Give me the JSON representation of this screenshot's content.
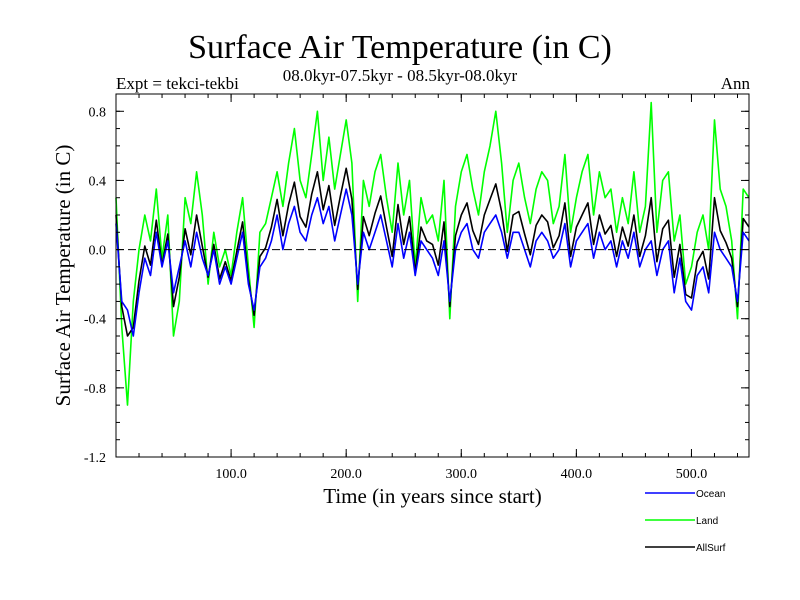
{
  "chart_data": {
    "type": "line",
    "title": "Surface Air Temperature (in C)",
    "subtitle": "08.0kyr-07.5kyr - 08.5kyr-08.0kyr",
    "experiment": "Expt = tekci-tekbi",
    "period": "Ann",
    "xlabel": "Time (in years since start)",
    "ylabel": "Surface Air Temperature (in C)",
    "xlim": [
      0,
      550
    ],
    "ylim": [
      -1.2,
      0.9
    ],
    "xticks": [
      100,
      200,
      300,
      400,
      500
    ],
    "xtick_labels": [
      "100.0",
      "200.0",
      "300.0",
      "400.0",
      "500.0"
    ],
    "yticks": [
      -1.2,
      -0.8,
      -0.4,
      0.0,
      0.4,
      0.8
    ],
    "ytick_labels": [
      "-1.2",
      "-0.8",
      "-0.4",
      "0.0",
      "0.4",
      "0.8"
    ],
    "zero_line": true,
    "legend_position": "bottom-right",
    "colors": {
      "Ocean": "#0000ff",
      "Land": "#00ff00",
      "AllSurf": "#000000"
    },
    "series": [
      {
        "name": "Ocean",
        "x": [
          0,
          5,
          10,
          15,
          20,
          25,
          30,
          35,
          40,
          45,
          50,
          55,
          60,
          65,
          70,
          75,
          80,
          85,
          90,
          95,
          100,
          105,
          110,
          115,
          120,
          125,
          130,
          135,
          140,
          145,
          150,
          155,
          160,
          165,
          170,
          175,
          180,
          185,
          190,
          195,
          200,
          205,
          210,
          215,
          220,
          225,
          230,
          235,
          240,
          245,
          250,
          255,
          260,
          265,
          270,
          275,
          280,
          285,
          290,
          295,
          300,
          305,
          310,
          315,
          320,
          325,
          330,
          335,
          340,
          345,
          350,
          355,
          360,
          365,
          370,
          375,
          380,
          385,
          390,
          395,
          400,
          405,
          410,
          415,
          420,
          425,
          430,
          435,
          440,
          445,
          450,
          455,
          460,
          465,
          470,
          475,
          480,
          485,
          490,
          495,
          500,
          505,
          510,
          515,
          520,
          525,
          530,
          535,
          540,
          545,
          550
        ],
        "values": [
          0.15,
          -0.3,
          -0.35,
          -0.5,
          -0.25,
          -0.05,
          -0.15,
          0.1,
          -0.1,
          0.05,
          -0.25,
          -0.1,
          0.05,
          -0.1,
          0.1,
          -0.05,
          -0.15,
          0.0,
          -0.2,
          -0.1,
          -0.2,
          -0.05,
          0.1,
          -0.2,
          -0.35,
          -0.1,
          -0.05,
          0.05,
          0.2,
          0.0,
          0.15,
          0.25,
          0.1,
          0.05,
          0.2,
          0.3,
          0.15,
          0.25,
          0.05,
          0.2,
          0.35,
          0.2,
          -0.2,
          0.1,
          0.0,
          0.1,
          0.2,
          0.05,
          -0.1,
          0.15,
          -0.05,
          0.1,
          -0.15,
          0.05,
          0.0,
          -0.05,
          -0.15,
          0.05,
          -0.3,
          0.0,
          0.1,
          0.15,
          0.0,
          -0.05,
          0.1,
          0.15,
          0.2,
          0.1,
          -0.05,
          0.1,
          0.1,
          0.0,
          -0.1,
          0.05,
          0.1,
          0.05,
          -0.05,
          0.0,
          0.15,
          -0.1,
          0.05,
          0.1,
          0.15,
          -0.05,
          0.1,
          0.0,
          0.05,
          -0.1,
          0.05,
          -0.05,
          0.1,
          -0.1,
          0.0,
          0.05,
          -0.15,
          0.0,
          0.05,
          -0.25,
          -0.05,
          -0.3,
          -0.35,
          -0.15,
          -0.1,
          -0.25,
          0.1,
          0.0,
          -0.05,
          -0.1,
          -0.3,
          0.1,
          0.05
        ]
      },
      {
        "name": "Land",
        "x": [
          0,
          5,
          10,
          15,
          20,
          25,
          30,
          35,
          40,
          45,
          50,
          55,
          60,
          65,
          70,
          75,
          80,
          85,
          90,
          95,
          100,
          105,
          110,
          115,
          120,
          125,
          130,
          135,
          140,
          145,
          150,
          155,
          160,
          165,
          170,
          175,
          180,
          185,
          190,
          195,
          200,
          205,
          210,
          215,
          220,
          225,
          230,
          235,
          240,
          245,
          250,
          255,
          260,
          265,
          270,
          275,
          280,
          285,
          290,
          295,
          300,
          305,
          310,
          315,
          320,
          325,
          330,
          335,
          340,
          345,
          350,
          355,
          360,
          365,
          370,
          375,
          380,
          385,
          390,
          395,
          400,
          405,
          410,
          415,
          420,
          425,
          430,
          435,
          440,
          445,
          450,
          455,
          460,
          465,
          470,
          475,
          480,
          485,
          490,
          495,
          500,
          505,
          510,
          515,
          520,
          525,
          530,
          535,
          540,
          545,
          550
        ],
        "values": [
          0.3,
          -0.45,
          -0.9,
          -0.3,
          0.0,
          0.2,
          0.05,
          0.35,
          -0.05,
          0.2,
          -0.5,
          -0.3,
          0.3,
          0.15,
          0.45,
          0.2,
          -0.2,
          0.1,
          -0.1,
          0.0,
          -0.15,
          0.1,
          0.3,
          -0.1,
          -0.45,
          0.1,
          0.15,
          0.3,
          0.45,
          0.25,
          0.5,
          0.7,
          0.4,
          0.3,
          0.55,
          0.8,
          0.4,
          0.65,
          0.35,
          0.55,
          0.75,
          0.5,
          -0.3,
          0.4,
          0.25,
          0.45,
          0.55,
          0.3,
          0.1,
          0.5,
          0.2,
          0.4,
          -0.1,
          0.3,
          0.15,
          0.2,
          0.05,
          0.4,
          -0.4,
          0.25,
          0.45,
          0.55,
          0.35,
          0.2,
          0.45,
          0.6,
          0.8,
          0.5,
          0.1,
          0.4,
          0.5,
          0.3,
          0.15,
          0.35,
          0.45,
          0.4,
          0.15,
          0.25,
          0.55,
          0.1,
          0.3,
          0.45,
          0.55,
          0.2,
          0.45,
          0.3,
          0.35,
          0.1,
          0.3,
          0.15,
          0.45,
          0.1,
          0.25,
          0.85,
          0.1,
          0.4,
          0.45,
          0.05,
          0.2,
          -0.2,
          -0.1,
          0.1,
          0.2,
          0.0,
          0.75,
          0.35,
          0.25,
          0.05,
          -0.4,
          0.35,
          0.3
        ]
      },
      {
        "name": "AllSurf",
        "x": [
          0,
          5,
          10,
          15,
          20,
          25,
          30,
          35,
          40,
          45,
          50,
          55,
          60,
          65,
          70,
          75,
          80,
          85,
          90,
          95,
          100,
          105,
          110,
          115,
          120,
          125,
          130,
          135,
          140,
          145,
          150,
          155,
          160,
          165,
          170,
          175,
          180,
          185,
          190,
          195,
          200,
          205,
          210,
          215,
          220,
          225,
          230,
          235,
          240,
          245,
          250,
          255,
          260,
          265,
          270,
          275,
          280,
          285,
          290,
          295,
          300,
          305,
          310,
          315,
          320,
          325,
          330,
          335,
          340,
          345,
          350,
          355,
          360,
          365,
          370,
          375,
          380,
          385,
          390,
          395,
          400,
          405,
          410,
          415,
          420,
          425,
          430,
          435,
          440,
          445,
          450,
          455,
          460,
          465,
          470,
          475,
          480,
          485,
          490,
          495,
          500,
          505,
          510,
          515,
          520,
          525,
          530,
          535,
          540,
          545,
          550
        ],
        "values": [
          0.2,
          -0.33,
          -0.5,
          -0.45,
          -0.18,
          0.02,
          -0.09,
          0.17,
          -0.09,
          0.09,
          -0.33,
          -0.16,
          0.12,
          -0.03,
          0.2,
          0.02,
          -0.16,
          0.03,
          -0.17,
          -0.07,
          -0.18,
          -0.01,
          0.16,
          -0.17,
          -0.38,
          -0.04,
          0.01,
          0.13,
          0.29,
          0.08,
          0.26,
          0.39,
          0.19,
          0.13,
          0.32,
          0.45,
          0.23,
          0.37,
          0.14,
          0.31,
          0.47,
          0.29,
          -0.23,
          0.19,
          0.08,
          0.21,
          0.31,
          0.13,
          -0.04,
          0.26,
          0.03,
          0.19,
          -0.13,
          0.13,
          0.05,
          0.03,
          -0.09,
          0.16,
          -0.33,
          0.08,
          0.2,
          0.27,
          0.11,
          0.03,
          0.2,
          0.29,
          0.38,
          0.22,
          -0.01,
          0.2,
          0.22,
          0.09,
          -0.03,
          0.14,
          0.2,
          0.16,
          0.01,
          0.08,
          0.27,
          -0.04,
          0.13,
          0.2,
          0.27,
          0.03,
          0.2,
          0.09,
          0.14,
          -0.04,
          0.13,
          0.02,
          0.2,
          -0.04,
          0.08,
          0.3,
          -0.07,
          0.12,
          0.17,
          -0.16,
          0.03,
          -0.26,
          -0.28,
          -0.07,
          -0.01,
          -0.17,
          0.3,
          0.11,
          0.04,
          -0.05,
          -0.33,
          0.18,
          0.13
        ]
      }
    ]
  }
}
